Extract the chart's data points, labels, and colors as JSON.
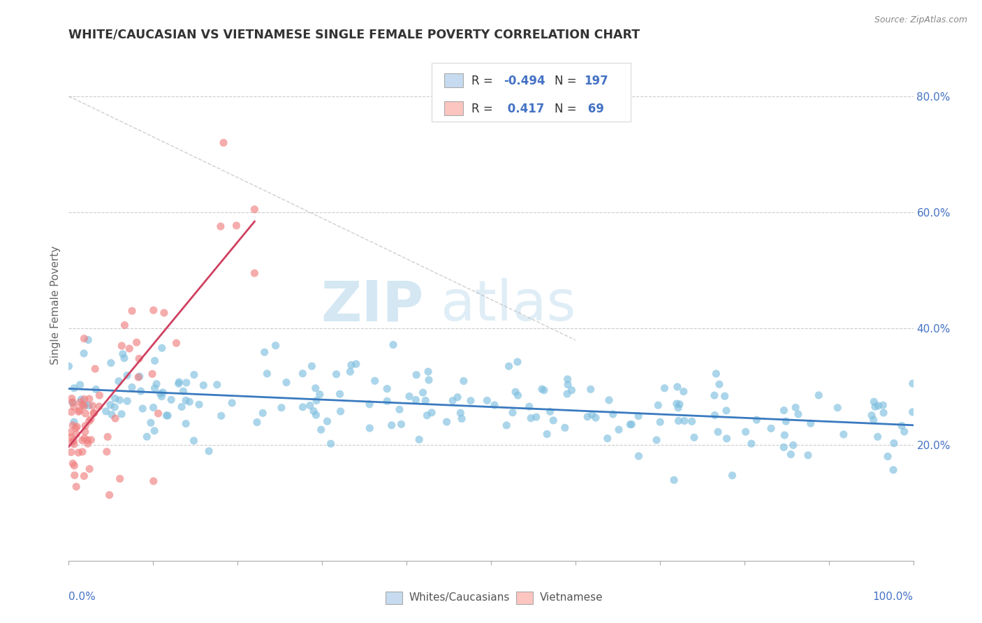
{
  "title": "WHITE/CAUCASIAN VS VIETNAMESE SINGLE FEMALE POVERTY CORRELATION CHART",
  "source": "Source: ZipAtlas.com",
  "ylabel": "Single Female Poverty",
  "watermark_zip": "ZIP",
  "watermark_atlas": "atlas",
  "blue_color": "#7fbfdf",
  "blue_light": "#c6dbef",
  "pink_color": "#f08080",
  "pink_light": "#fcc5c0",
  "blue_line_color": "#3a7abf",
  "pink_line_color": "#d04060",
  "title_color": "#333333",
  "axis_color": "#4472c4",
  "r_value_color": "#4472c4",
  "background_color": "#ffffff",
  "grid_color": "#cccccc",
  "seed": 99,
  "n_blue": 197,
  "n_pink": 69
}
